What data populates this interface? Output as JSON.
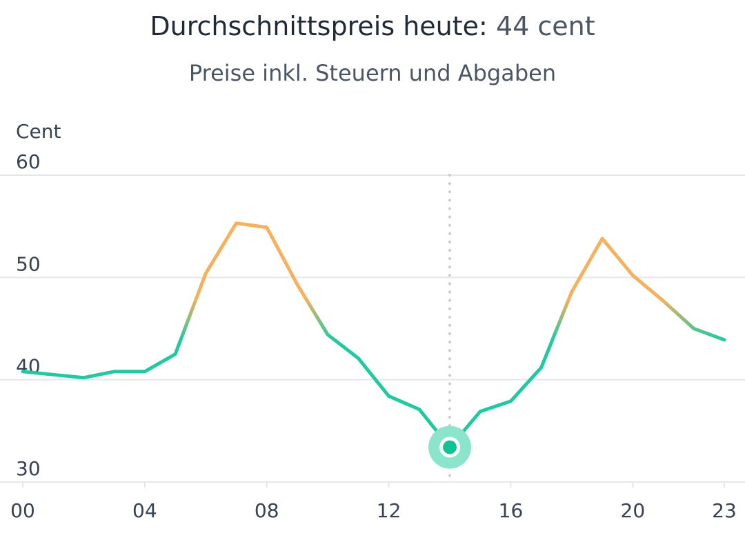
{
  "header": {
    "title_prefix": "Durchschnittspreis heute:",
    "title_value": "44 cent",
    "subtitle": "Preise inkl. Steuern und Abgaben"
  },
  "chart_data": {
    "type": "line",
    "ylabel": "Cent",
    "ylim": [
      30,
      60
    ],
    "y_ticks": [
      30,
      40,
      50,
      60
    ],
    "x_tick_labels": [
      "00",
      "04",
      "08",
      "12",
      "16",
      "20",
      "23"
    ],
    "x_tick_hours": [
      0,
      4,
      8,
      12,
      16,
      20,
      23
    ],
    "xlim": [
      0,
      23
    ],
    "x": [
      0,
      1,
      2,
      3,
      4,
      5,
      6,
      7,
      8,
      9,
      10,
      11,
      12,
      13,
      14,
      15,
      16,
      17,
      18,
      19,
      20,
      21,
      22,
      23
    ],
    "values": [
      40.8,
      40.5,
      40.2,
      40.8,
      40.8,
      42.5,
      50.4,
      55.3,
      54.9,
      49.3,
      44.4,
      42.1,
      38.4,
      37.1,
      33.4,
      36.9,
      37.9,
      41.2,
      48.6,
      53.8,
      50.2,
      47.7,
      45.0,
      43.9
    ],
    "selected": {
      "x": 14,
      "y": 33.4
    },
    "grid": true,
    "colors": {
      "low": "#20c9a0",
      "high": "#f6b15e",
      "grid": "#e5e7eb",
      "marker_halo": "#8be4cc",
      "marker_core": "#13c294",
      "crosshair": "#c9ccd1"
    }
  }
}
